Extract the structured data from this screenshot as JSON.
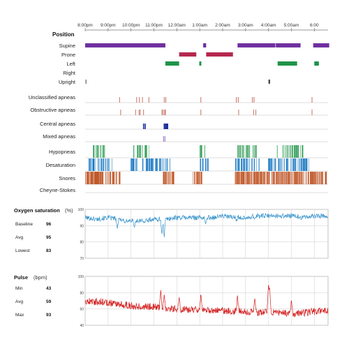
{
  "chart_data": {
    "type": "line",
    "time_ticks": [
      "8:00pm",
      "9:00pm",
      "10:00pm",
      "11:00pm",
      "12:00am",
      "1:00am",
      "2:00am",
      "3:00am",
      "4:00am",
      "5:00am",
      "6:00"
    ],
    "position": {
      "title": "Position",
      "rows": [
        {
          "label": "Supine",
          "color": "#7030a0",
          "segments": [
            [
              20.0,
              23.5
            ],
            [
              25.15,
              25.28
            ],
            [
              26.65,
              28.3
            ],
            [
              28.32,
              29.4
            ],
            [
              29.95,
              30.65
            ]
          ]
        },
        {
          "label": "Prone",
          "color": "#b5284e",
          "segments": [
            [
              24.1,
              24.85
            ],
            [
              25.28,
              26.45
            ]
          ]
        },
        {
          "label": "Left",
          "color": "#1e9448",
          "segments": [
            [
              23.5,
              24.1
            ],
            [
              24.98,
              25.07
            ],
            [
              28.4,
              29.25
            ],
            [
              30.0,
              30.2
            ]
          ]
        },
        {
          "label": "Right",
          "color": "#444444",
          "segments": []
        },
        {
          "label": "Upright",
          "color": "#444444",
          "segments": [
            [
              20.02,
              20.05
            ],
            [
              28.0,
              28.07
            ]
          ]
        }
      ]
    },
    "events": [
      {
        "label": "Unclassified apneas",
        "color": "#c06050",
        "times": [
          21.5,
          22.25,
          22.37,
          22.5,
          22.78,
          23.45,
          23.52,
          25.05,
          26.6,
          26.68,
          27.3,
          27.37,
          29.9
        ]
      },
      {
        "label": "Obstructive apneas",
        "color": "#c06050",
        "times": [
          21.55,
          22.2,
          22.35,
          22.4,
          22.55,
          23.35,
          23.4,
          23.47,
          23.5,
          25.05,
          26.7,
          27.35,
          27.45,
          29.9
        ]
      },
      {
        "label": "Central apneas",
        "color": "#2030a0",
        "times": [
          22.55,
          22.62,
          23.45,
          23.5,
          23.53,
          23.56,
          23.6
        ]
      },
      {
        "label": "Mixed apneas",
        "color": "#8060c0",
        "times": [
          23.42,
          23.48
        ]
      }
    ],
    "density_rows": [
      {
        "label": "Hypopneas",
        "color": "#1e9448",
        "seed": 11,
        "density": 0.35,
        "clusters": [
          [
            20.3,
            21.0
          ],
          [
            22.1,
            22.8
          ],
          [
            25.0,
            25.3
          ],
          [
            26.6,
            27.5
          ],
          [
            28.3,
            29.6
          ]
        ]
      },
      {
        "label": "Desaturation",
        "color": "#1a78c2",
        "seed": 23,
        "density": 0.45,
        "clusters": [
          [
            20.1,
            21.2
          ],
          [
            22.0,
            23.7
          ],
          [
            25.0,
            25.4
          ],
          [
            26.5,
            27.6
          ],
          [
            28.0,
            29.8
          ]
        ]
      },
      {
        "label": "Snores",
        "color": "#c0582a",
        "seed": 37,
        "density": 0.75,
        "clusters": [
          [
            20.0,
            21.6
          ],
          [
            23.4,
            23.9
          ],
          [
            24.7,
            25.1
          ],
          [
            26.5,
            30.6
          ]
        ]
      }
    ],
    "cheyne_stokes_label": "Cheyne-Stokes",
    "oxygen": {
      "title": "Oxygen saturation",
      "unit": "(%)",
      "ylim": [
        70,
        100
      ],
      "yticks": [
        100,
        90,
        80,
        70
      ],
      "color": "#3b95cc",
      "stats": [
        {
          "label": "Baseline",
          "value": "96"
        },
        {
          "label": "Avg",
          "value": "95"
        },
        {
          "label": "Lowest",
          "value": "83"
        }
      ],
      "trend": [
        [
          20.0,
          95
        ],
        [
          20.5,
          94
        ],
        [
          21.0,
          95
        ],
        [
          21.5,
          94
        ],
        [
          22.0,
          93
        ],
        [
          22.5,
          93
        ],
        [
          23.0,
          94
        ],
        [
          23.5,
          94
        ],
        [
          24.0,
          95
        ],
        [
          24.5,
          95
        ],
        [
          25.0,
          95
        ],
        [
          25.5,
          95
        ],
        [
          26.0,
          96
        ],
        [
          26.5,
          95
        ],
        [
          27.0,
          95
        ],
        [
          27.5,
          96
        ],
        [
          28.0,
          96
        ],
        [
          28.5,
          96
        ],
        [
          29.0,
          96
        ],
        [
          29.5,
          95
        ],
        [
          30.0,
          96
        ],
        [
          30.6,
          96
        ]
      ],
      "dips": [
        [
          21.4,
          88
        ],
        [
          21.75,
          91
        ],
        [
          22.15,
          89
        ],
        [
          22.55,
          92
        ],
        [
          23.35,
          84
        ],
        [
          23.45,
          83
        ],
        [
          25.25,
          91
        ],
        [
          26.6,
          93
        ],
        [
          27.4,
          94
        ]
      ]
    },
    "pulse": {
      "title": "Pulse",
      "unit": "(bpm)",
      "ylim": [
        40,
        100
      ],
      "yticks": [
        100,
        80,
        60,
        40
      ],
      "color": "#d42020",
      "stats": [
        {
          "label": "Min",
          "value": "43"
        },
        {
          "label": "Avg",
          "value": "59"
        },
        {
          "label": "Max",
          "value": "93"
        }
      ],
      "trend": [
        [
          20.0,
          70
        ],
        [
          20.5,
          69
        ],
        [
          21.0,
          68
        ],
        [
          21.5,
          66
        ],
        [
          22.0,
          64
        ],
        [
          22.5,
          63
        ],
        [
          23.0,
          63
        ],
        [
          23.5,
          61
        ],
        [
          24.0,
          60
        ],
        [
          24.5,
          59
        ],
        [
          25.0,
          59
        ],
        [
          25.5,
          58
        ],
        [
          26.0,
          58
        ],
        [
          26.5,
          57
        ],
        [
          27.0,
          57
        ],
        [
          27.5,
          56
        ],
        [
          28.0,
          56
        ],
        [
          28.5,
          55
        ],
        [
          29.0,
          54
        ],
        [
          29.5,
          55
        ],
        [
          30.0,
          57
        ],
        [
          30.6,
          58
        ]
      ],
      "spikes": [
        [
          23.3,
          83
        ],
        [
          23.45,
          78
        ],
        [
          24.1,
          75
        ],
        [
          25.05,
          79
        ],
        [
          26.65,
          77
        ],
        [
          27.4,
          74
        ],
        [
          28.0,
          93
        ],
        [
          28.05,
          88
        ],
        [
          29.0,
          72
        ]
      ]
    }
  }
}
